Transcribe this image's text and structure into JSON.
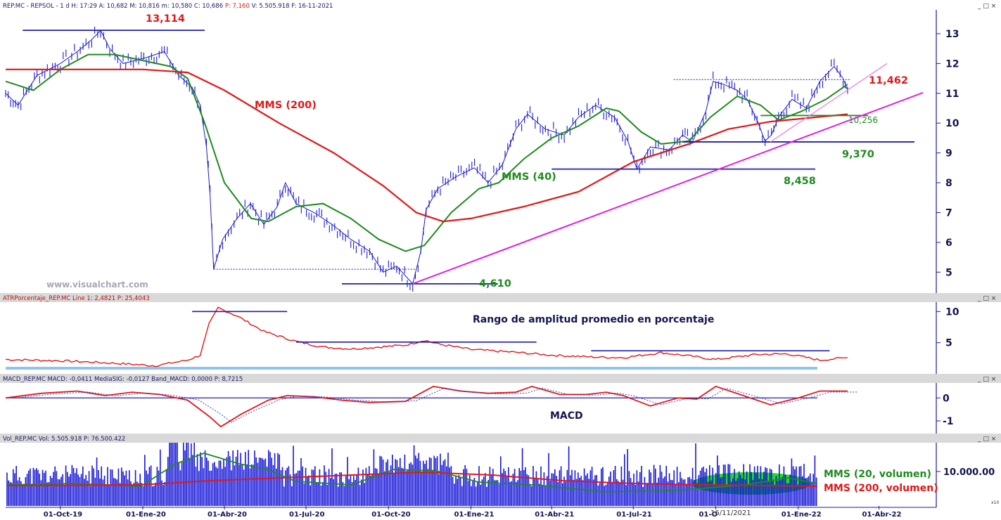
{
  "panels": {
    "price": {
      "header": "REP.MC - REPSOL - 1 d H: 17:29 A: 10,682 M: 10,816 m: 10,580 C: 10,686",
      "header_pct": "P: 7,160",
      "header_tail": "V: 5.505.918 F: 16-11-2021",
      "watermark": "www.visualchart.com"
    },
    "atr": {
      "header": "ATRPorcentaje_REP.MC Line 1: 2,4821 P: 25,4043",
      "title": "Rango de amplitud promedio en porcentaje"
    },
    "macd": {
      "header": "MACD_REP.MC MACD: -0,0411 MediaSIG: -0,0127 Band_MACD: 0,0000 P: 8,7215",
      "title": "MACD"
    },
    "volume": {
      "header": "Vol_REP.MC Vol: 5.505.918 P: 76.500.422",
      "cursor_date": "16/11/2021",
      "scale_unit": "x10"
    }
  },
  "window_controls": "_ □ ×",
  "chart_data": [
    {
      "type": "line",
      "title": "",
      "x_ticks": [
        "01-Oct-19",
        "01-Ene-20",
        "01-Abr-20",
        "01-Jul-20",
        "01-Oct-20",
        "01-Ene-21",
        "01-Abr-21",
        "01-Jul-21",
        "01-Oct-21",
        "01-Ene-22",
        "01-Abr-22"
      ],
      "x_tick_positions": [
        [
          2019,
          10
        ],
        [
          2020,
          1
        ],
        [
          2020,
          4
        ],
        [
          2020,
          7
        ],
        [
          2020,
          10
        ],
        [
          2021,
          1
        ],
        [
          2021,
          4
        ],
        [
          2021,
          7
        ],
        [
          2021,
          10
        ],
        [
          2022,
          1
        ],
        [
          2022,
          4
        ]
      ],
      "x_range": [
        "2019-08-01",
        "2022-05-31"
      ],
      "y_ticks": [
        5,
        6,
        7,
        8,
        9,
        10,
        11,
        12,
        13
      ],
      "ylim": [
        4.3,
        13.8
      ],
      "series": [
        {
          "name": "",
          "color": "#1a1acf",
          "points": [
            [
              "2019-08-01",
              11.0
            ],
            [
              "2019-08-15",
              10.6
            ],
            [
              "2019-09-05",
              11.6
            ],
            [
              "2019-10-01",
              12.0
            ],
            [
              "2019-10-20",
              12.4
            ],
            [
              "2019-11-05",
              12.8
            ],
            [
              "2019-11-15",
              13.11
            ],
            [
              "2019-11-25",
              12.5
            ],
            [
              "2019-12-10",
              12.0
            ],
            [
              "2020-01-05",
              12.2
            ],
            [
              "2020-01-25",
              12.4
            ],
            [
              "2020-02-10",
              11.6
            ],
            [
              "2020-02-25",
              11.2
            ],
            [
              "2020-03-05",
              10.6
            ],
            [
              "2020-03-12",
              9.2
            ],
            [
              "2020-03-16",
              7.6
            ],
            [
              "2020-03-20",
              5.1
            ],
            [
              "2020-03-30",
              6.1
            ],
            [
              "2020-04-15",
              6.8
            ],
            [
              "2020-04-30",
              7.3
            ],
            [
              "2020-05-15",
              6.6
            ],
            [
              "2020-05-30",
              7.2
            ],
            [
              "2020-06-08",
              8.0
            ],
            [
              "2020-06-20",
              7.3
            ],
            [
              "2020-07-10",
              7.0
            ],
            [
              "2020-07-30",
              6.6
            ],
            [
              "2020-08-20",
              6.1
            ],
            [
              "2020-09-10",
              5.7
            ],
            [
              "2020-09-25",
              5.0
            ],
            [
              "2020-10-10",
              5.2
            ],
            [
              "2020-10-28",
              4.61
            ],
            [
              "2020-11-06",
              5.7
            ],
            [
              "2020-11-12",
              7.1
            ],
            [
              "2020-11-25",
              7.8
            ],
            [
              "2020-12-15",
              8.2
            ],
            [
              "2021-01-05",
              8.5
            ],
            [
              "2021-01-20",
              8.0
            ],
            [
              "2021-02-05",
              8.6
            ],
            [
              "2021-02-20",
              9.8
            ],
            [
              "2021-03-05",
              10.3
            ],
            [
              "2021-03-25",
              9.8
            ],
            [
              "2021-04-15",
              9.6
            ],
            [
              "2021-05-01",
              10.2
            ],
            [
              "2021-05-20",
              10.6
            ],
            [
              "2021-06-10",
              10.2
            ],
            [
              "2021-06-25",
              9.4
            ],
            [
              "2021-07-05",
              8.46
            ],
            [
              "2021-07-20",
              9.2
            ],
            [
              "2021-08-10",
              9.1
            ],
            [
              "2021-08-25",
              9.6
            ],
            [
              "2021-09-05",
              9.37
            ],
            [
              "2021-09-20",
              10.4
            ],
            [
              "2021-09-28",
              11.4
            ],
            [
              "2021-10-10",
              11.3
            ],
            [
              "2021-10-25",
              11.1
            ],
            [
              "2021-11-05",
              10.8
            ],
            [
              "2021-11-16",
              10.1
            ],
            [
              "2021-11-25",
              9.4
            ],
            [
              "2021-12-02",
              9.6
            ],
            [
              "2021-12-10",
              10.2
            ],
            [
              "2021-12-25",
              10.8
            ],
            [
              "2022-01-10",
              10.5
            ],
            [
              "2022-01-25",
              11.4
            ],
            [
              "2022-02-10",
              11.9
            ],
            [
              "2022-02-20",
              11.5
            ],
            [
              "2022-02-25",
              11.1
            ]
          ]
        },
        {
          "name": "MMS (40)",
          "color": "#1f8a1f",
          "points": [
            [
              "2019-08-01",
              11.4
            ],
            [
              "2019-09-01",
              11.1
            ],
            [
              "2019-10-01",
              11.8
            ],
            [
              "2019-11-01",
              12.3
            ],
            [
              "2019-12-01",
              12.3
            ],
            [
              "2020-01-01",
              12.1
            ],
            [
              "2020-02-01",
              11.9
            ],
            [
              "2020-02-20",
              11.5
            ],
            [
              "2020-03-10",
              10.0
            ],
            [
              "2020-04-01",
              8.0
            ],
            [
              "2020-05-01",
              6.8
            ],
            [
              "2020-05-20",
              6.7
            ],
            [
              "2020-06-20",
              7.2
            ],
            [
              "2020-07-20",
              7.3
            ],
            [
              "2020-08-20",
              6.8
            ],
            [
              "2020-09-20",
              6.1
            ],
            [
              "2020-10-20",
              5.7
            ],
            [
              "2020-11-10",
              5.9
            ],
            [
              "2020-12-10",
              7.0
            ],
            [
              "2021-01-10",
              7.8
            ],
            [
              "2021-02-01",
              8.0
            ],
            [
              "2021-03-01",
              8.8
            ],
            [
              "2021-04-01",
              9.5
            ],
            [
              "2021-05-01",
              9.9
            ],
            [
              "2021-06-01",
              10.5
            ],
            [
              "2021-06-15",
              10.4
            ],
            [
              "2021-07-10",
              9.7
            ],
            [
              "2021-08-01",
              9.3
            ],
            [
              "2021-09-01",
              9.4
            ],
            [
              "2021-09-25",
              10.2
            ],
            [
              "2021-10-25",
              10.9
            ],
            [
              "2021-11-20",
              10.6
            ],
            [
              "2021-12-10",
              10.1
            ],
            [
              "2022-01-05",
              10.4
            ],
            [
              "2022-02-01",
              10.8
            ],
            [
              "2022-02-25",
              11.3
            ]
          ]
        },
        {
          "name": "MMS (200)",
          "color": "#e01818",
          "points": [
            [
              "2019-08-01",
              11.8
            ],
            [
              "2019-10-01",
              11.8
            ],
            [
              "2020-01-01",
              11.8
            ],
            [
              "2020-02-20",
              11.7
            ],
            [
              "2020-04-01",
              11.1
            ],
            [
              "2020-06-01",
              10.0
            ],
            [
              "2020-08-01",
              9.0
            ],
            [
              "2020-09-25",
              7.9
            ],
            [
              "2020-11-01",
              7.0
            ],
            [
              "2020-12-01",
              6.7
            ],
            [
              "2021-01-01",
              6.8
            ],
            [
              "2021-03-01",
              7.2
            ],
            [
              "2021-05-01",
              7.7
            ],
            [
              "2021-07-01",
              8.7
            ],
            [
              "2021-09-01",
              9.3
            ],
            [
              "2021-10-15",
              9.8
            ],
            [
              "2021-12-01",
              10.05
            ],
            [
              "2022-02-25",
              10.3
            ]
          ]
        }
      ],
      "levels": [
        {
          "label": "13,114",
          "value": 13.114,
          "from": "2019-08-20",
          "to": "2020-03-10",
          "style": "solid",
          "color": "#1f1faf",
          "label_color": "#e01818"
        },
        {
          "label": "4,610",
          "value": 4.61,
          "from": "2020-08-10",
          "to": "2021-01-31",
          "style": "solid",
          "color": "#1f1faf",
          "label_color": "#1f8a1f"
        },
        {
          "label": "8,458",
          "value": 8.458,
          "from": "2021-04-01",
          "to": "2022-01-20",
          "style": "solid",
          "color": "#1f1faf",
          "label_color": "#1f8a1f"
        },
        {
          "label": "9,370",
          "value": 9.37,
          "from": "2021-08-25",
          "to": "2022-06-10",
          "style": "solid",
          "color": "#1f1faf",
          "label_color": "#1f8a1f"
        },
        {
          "label": "10,256",
          "value": 10.256,
          "from": "2021-11-20",
          "to": "2022-03-20",
          "style": "solid",
          "color": "#1f8a1f",
          "label_color": "#1f8a1f"
        },
        {
          "label": "",
          "value": 5.1,
          "from": "2020-03-20",
          "to": "2020-11-01",
          "style": "dashed",
          "color": "#1f1faf",
          "label_color": ""
        },
        {
          "label": "",
          "value": 11.46,
          "from": "2021-08-15",
          "to": "2022-03-01",
          "style": "dashed",
          "color": "#1f1faf",
          "label_color": ""
        }
      ],
      "trendlines": [
        {
          "from": [
            "2020-10-28",
            4.61
          ],
          "to": [
            "2022-05-20",
            11.02
          ],
          "color": "#e020e0",
          "label": "11,462",
          "label_color": "#e01818"
        },
        {
          "from": [
            "2021-12-01",
            9.37
          ],
          "to": [
            "2022-04-10",
            12.0
          ],
          "color": "#e98be9",
          "label": "",
          "label_color": ""
        }
      ],
      "annotations": [
        {
          "text": "MMS (200)",
          "color": "#e01818"
        },
        {
          "text": "MMS (40)",
          "color": "#1f8a1f"
        }
      ]
    },
    {
      "type": "line",
      "title": "Rango de amplitud promedio en porcentaje",
      "y_ticks": [
        5,
        10
      ],
      "ylim": [
        0,
        11.5
      ],
      "series": [
        {
          "name": "",
          "color": "#e01818",
          "points": [
            [
              "2019-08-01",
              2.3
            ],
            [
              "2019-10-01",
              2.1
            ],
            [
              "2019-12-01",
              1.7
            ],
            [
              "2020-01-15",
              1.3
            ],
            [
              "2020-02-20",
              2.2
            ],
            [
              "2020-03-05",
              3.0
            ],
            [
              "2020-03-15",
              8.0
            ],
            [
              "2020-03-25",
              10.6
            ],
            [
              "2020-04-15",
              9.3
            ],
            [
              "2020-05-15",
              6.8
            ],
            [
              "2020-06-20",
              5.2
            ],
            [
              "2020-07-20",
              4.3
            ],
            [
              "2020-08-20",
              4.0
            ],
            [
              "2020-09-20",
              4.3
            ],
            [
              "2020-10-20",
              4.6
            ],
            [
              "2020-11-10",
              5.4
            ],
            [
              "2020-11-25",
              4.8
            ],
            [
              "2021-01-01",
              3.9
            ],
            [
              "2021-02-15",
              3.5
            ],
            [
              "2021-04-01",
              3.0
            ],
            [
              "2021-05-15",
              2.7
            ],
            [
              "2021-06-20",
              2.6
            ],
            [
              "2021-08-01",
              3.4
            ],
            [
              "2021-08-25",
              3.0
            ],
            [
              "2021-10-01",
              2.3
            ],
            [
              "2021-11-15",
              3.1
            ],
            [
              "2021-12-20",
              3.2
            ],
            [
              "2022-01-25",
              2.2
            ],
            [
              "2022-02-25",
              2.6
            ]
          ]
        }
      ],
      "levels": [
        {
          "value": 10.0,
          "from": "2020-02-25",
          "to": "2020-06-10"
        },
        {
          "value": 5.1,
          "from": "2020-06-20",
          "to": "2021-03-15"
        },
        {
          "value": 3.7,
          "from": "2021-05-15",
          "to": "2022-02-05"
        }
      ]
    },
    {
      "type": "line",
      "title": "MACD",
      "y_ticks": [
        0,
        -1
      ],
      "ylim": [
        -1.55,
        0.65
      ],
      "series": [
        {
          "name": "MACD",
          "color": "#e01818",
          "points": [
            [
              "2019-08-01",
              0.0
            ],
            [
              "2019-09-10",
              0.2
            ],
            [
              "2019-10-20",
              0.3
            ],
            [
              "2019-11-20",
              0.1
            ],
            [
              "2019-12-20",
              0.25
            ],
            [
              "2020-01-20",
              0.15
            ],
            [
              "2020-02-20",
              -0.1
            ],
            [
              "2020-03-15",
              -0.8
            ],
            [
              "2020-03-28",
              -1.25
            ],
            [
              "2020-04-20",
              -0.7
            ],
            [
              "2020-05-20",
              -0.1
            ],
            [
              "2020-06-10",
              0.1
            ],
            [
              "2020-07-10",
              0.05
            ],
            [
              "2020-08-10",
              -0.1
            ],
            [
              "2020-09-10",
              -0.2
            ],
            [
              "2020-10-20",
              -0.15
            ],
            [
              "2020-11-20",
              0.5
            ],
            [
              "2020-12-20",
              0.3
            ],
            [
              "2021-01-20",
              0.2
            ],
            [
              "2021-02-20",
              0.25
            ],
            [
              "2021-03-10",
              0.5
            ],
            [
              "2021-04-10",
              0.15
            ],
            [
              "2021-05-10",
              0.15
            ],
            [
              "2021-06-01",
              0.25
            ],
            [
              "2021-06-20",
              0.1
            ],
            [
              "2021-07-20",
              -0.35
            ],
            [
              "2021-08-20",
              0.0
            ],
            [
              "2021-09-10",
              -0.05
            ],
            [
              "2021-10-01",
              0.5
            ],
            [
              "2021-11-01",
              0.1
            ],
            [
              "2021-12-01",
              -0.3
            ],
            [
              "2022-01-01",
              0.0
            ],
            [
              "2022-01-25",
              0.3
            ],
            [
              "2022-02-25",
              0.3
            ]
          ]
        }
      ]
    },
    {
      "type": "bar",
      "title": "",
      "y_ticks": [
        "10.000.00"
      ],
      "series": [
        {
          "name": "MMS (20, volumen)",
          "color": "#1f8a1f"
        },
        {
          "name": "MMS (200, volumen)",
          "color": "#e01818"
        }
      ]
    }
  ]
}
